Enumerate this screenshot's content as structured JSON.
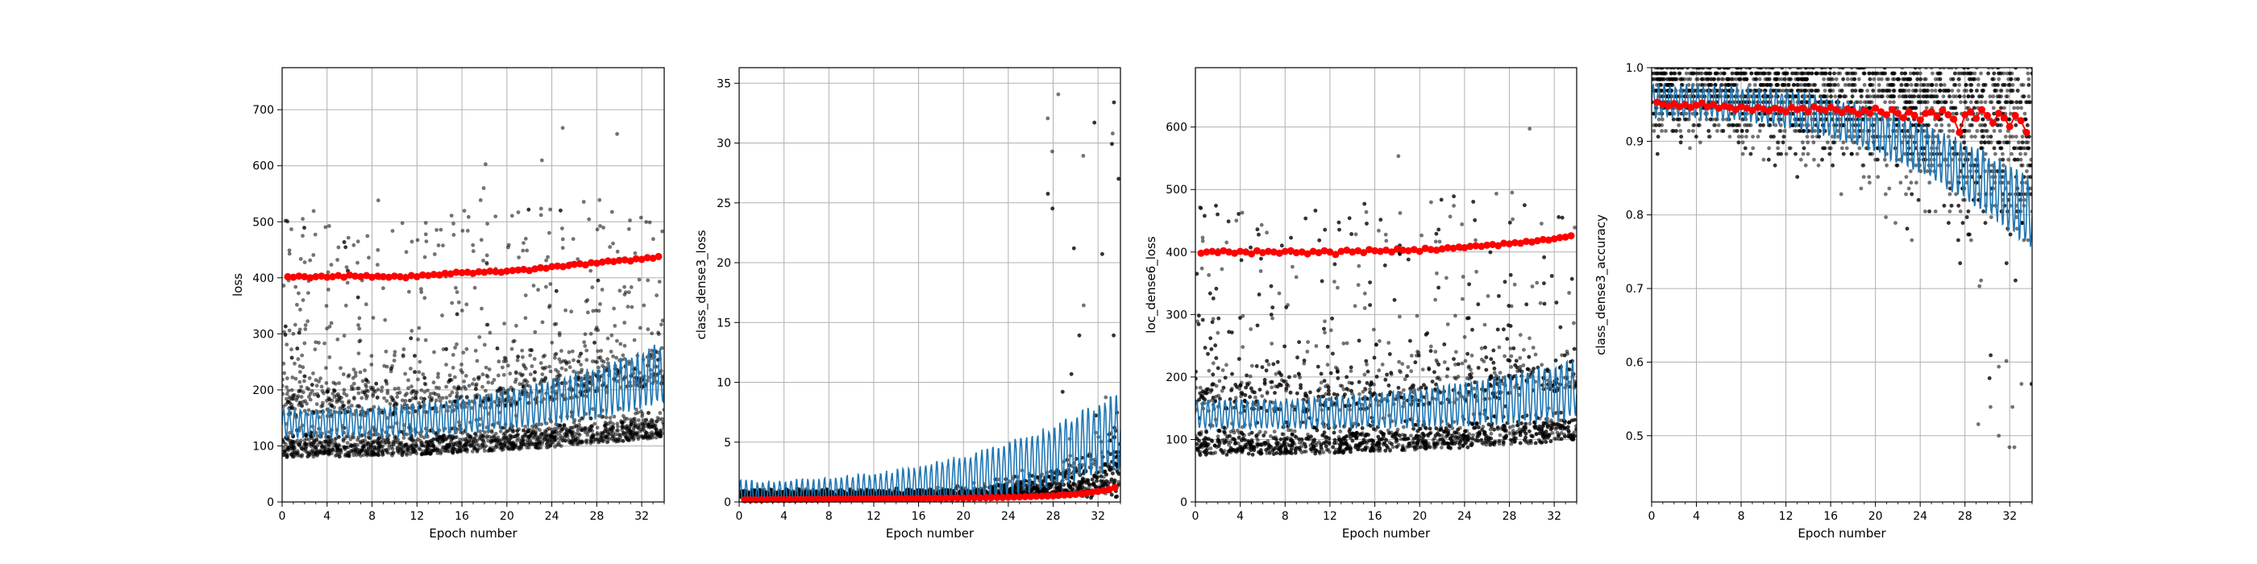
{
  "colors": {
    "scatter": "#000000",
    "batch_line": "#1f77b4",
    "epoch_points": "#ff0000",
    "grid": "#b0b0b0"
  },
  "chart_data": [
    {
      "type": "scatter",
      "xlabel": "Epoch number",
      "ylabel": "loss",
      "xlim": [
        0,
        34
      ],
      "ylim": [
        0,
        775
      ],
      "xticks": [
        0,
        4,
        8,
        12,
        16,
        20,
        24,
        28,
        32
      ],
      "xtick_labels": [
        "0",
        "4",
        "8",
        "12",
        "16",
        "20",
        "24",
        "28",
        "32"
      ],
      "yticks": [
        0,
        100,
        200,
        300,
        400,
        500,
        600,
        700
      ],
      "ytick_labels": [
        "0",
        "100",
        "200",
        "300",
        "400",
        "500",
        "600",
        "700"
      ],
      "grid": true,
      "cloud": {
        "base_low": 60,
        "base_mid": 150,
        "base_high": 500,
        "growth_end": 60,
        "outlier_max": 740
      },
      "batch_line": {
        "start": 140,
        "end": 230,
        "oscillation": 35
      },
      "epoch_points": {
        "x": [
          0.5,
          1,
          1.5,
          2,
          2.5,
          3,
          3.5,
          4,
          4.5,
          5,
          5.5,
          6,
          6.5,
          7,
          7.5,
          8,
          8.5,
          9,
          9.5,
          10,
          10.5,
          11,
          11.5,
          12,
          12.5,
          13,
          13.5,
          14,
          14.5,
          15,
          15.5,
          16,
          16.5,
          17,
          17.5,
          18,
          18.5,
          19,
          19.5,
          20,
          20.5,
          21,
          21.5,
          22,
          22.5,
          23,
          23.5,
          24,
          24.5,
          25,
          25.5,
          26,
          26.5,
          27,
          27.5,
          28,
          28.5,
          29,
          29.5,
          30,
          30.5,
          31,
          31.5,
          32,
          32.5,
          33,
          33.5
        ],
        "y": [
          402,
          401,
          403,
          402,
          400,
          402,
          403,
          401,
          402,
          404,
          401,
          405,
          403,
          402,
          404,
          401,
          403,
          402,
          401,
          403,
          402,
          400,
          404,
          402,
          405,
          404,
          406,
          405,
          408,
          407,
          410,
          409,
          410,
          408,
          411,
          410,
          412,
          411,
          410,
          412,
          413,
          414,
          415,
          413,
          416,
          418,
          417,
          420,
          421,
          420,
          422,
          424,
          425,
          423,
          427,
          426,
          428,
          430,
          429,
          431,
          432,
          430,
          434,
          433,
          436,
          435,
          438
        ]
      }
    },
    {
      "type": "scatter",
      "xlabel": "Epoch number",
      "ylabel": "class_dense3_loss",
      "xlim": [
        0,
        34
      ],
      "ylim": [
        0,
        36.3
      ],
      "xticks": [
        0,
        4,
        8,
        12,
        16,
        20,
        24,
        28,
        32
      ],
      "xtick_labels": [
        "0",
        "4",
        "8",
        "12",
        "16",
        "20",
        "24",
        "28",
        "32"
      ],
      "yticks": [
        0,
        5,
        10,
        15,
        20,
        25,
        30,
        35
      ],
      "ytick_labels": [
        "0",
        "5",
        "10",
        "15",
        "20",
        "25",
        "30",
        "35"
      ],
      "grid": true,
      "cloud": {
        "base": 0.3,
        "spread_start": 0.8,
        "spread_end": 14,
        "outlier_max": 34.5
      },
      "batch_line": {
        "start": 0.3,
        "end": 6,
        "oscillation": 2
      },
      "epoch_points": {
        "x": [
          0.5,
          1,
          1.5,
          2,
          2.5,
          3,
          3.5,
          4,
          4.5,
          5,
          5.5,
          6,
          6.5,
          7,
          7.5,
          8,
          8.5,
          9,
          9.5,
          10,
          10.5,
          11,
          11.5,
          12,
          12.5,
          13,
          13.5,
          14,
          14.5,
          15,
          15.5,
          16,
          16.5,
          17,
          17.5,
          18,
          18.5,
          19,
          19.5,
          20,
          20.5,
          21,
          21.5,
          22,
          22.5,
          23,
          23.5,
          24,
          24.5,
          25,
          25.5,
          26,
          26.5,
          27,
          27.5,
          28,
          28.5,
          29,
          29.5,
          30,
          30.5,
          31,
          31.5,
          32,
          32.5,
          33,
          33.5
        ],
        "y": [
          0.18,
          0.18,
          0.19,
          0.19,
          0.2,
          0.2,
          0.2,
          0.21,
          0.21,
          0.21,
          0.22,
          0.22,
          0.22,
          0.23,
          0.23,
          0.23,
          0.24,
          0.24,
          0.24,
          0.25,
          0.25,
          0.25,
          0.26,
          0.26,
          0.26,
          0.27,
          0.27,
          0.28,
          0.28,
          0.28,
          0.29,
          0.29,
          0.3,
          0.3,
          0.31,
          0.31,
          0.32,
          0.32,
          0.33,
          0.33,
          0.34,
          0.35,
          0.35,
          0.36,
          0.37,
          0.38,
          0.38,
          0.4,
          0.41,
          0.42,
          0.44,
          0.45,
          0.47,
          0.49,
          0.5,
          0.52,
          0.55,
          0.58,
          0.6,
          0.63,
          0.7,
          0.75,
          0.82,
          0.88,
          0.95,
          1.05,
          1.2
        ]
      }
    },
    {
      "type": "scatter",
      "xlabel": "Epoch number",
      "ylabel": "loc_dense6_loss",
      "xlim": [
        0,
        34
      ],
      "ylim": [
        0,
        695
      ],
      "xticks": [
        0,
        4,
        8,
        12,
        16,
        20,
        24,
        28,
        32
      ],
      "xtick_labels": [
        "0",
        "4",
        "8",
        "12",
        "16",
        "20",
        "24",
        "28",
        "32"
      ],
      "yticks": [
        0,
        100,
        200,
        300,
        400,
        500,
        600
      ],
      "ytick_labels": [
        "0",
        "100",
        "200",
        "300",
        "400",
        "500",
        "600"
      ],
      "grid": true,
      "cloud": {
        "base_low": 55,
        "base_mid": 140,
        "base_high": 470,
        "growth_end": 40,
        "outlier_max": 665
      },
      "batch_line": {
        "start": 140,
        "end": 180,
        "oscillation": 30
      },
      "epoch_points": {
        "x": [
          0.5,
          1,
          1.5,
          2,
          2.5,
          3,
          3.5,
          4,
          4.5,
          5,
          5.5,
          6,
          6.5,
          7,
          7.5,
          8,
          8.5,
          9,
          9.5,
          10,
          10.5,
          11,
          11.5,
          12,
          12.5,
          13,
          13.5,
          14,
          14.5,
          15,
          15.5,
          16,
          16.5,
          17,
          17.5,
          18,
          18.5,
          19,
          19.5,
          20,
          20.5,
          21,
          21.5,
          22,
          22.5,
          23,
          23.5,
          24,
          24.5,
          25,
          25.5,
          26,
          26.5,
          27,
          27.5,
          28,
          28.5,
          29,
          29.5,
          30,
          30.5,
          31,
          31.5,
          32,
          32.5,
          33,
          33.5
        ],
        "y": [
          398,
          400,
          401,
          399,
          402,
          400,
          398,
          401,
          400,
          397,
          402,
          399,
          401,
          400,
          398,
          401,
          402,
          399,
          400,
          397,
          401,
          399,
          402,
          400,
          396,
          401,
          403,
          400,
          402,
          399,
          404,
          402,
          401,
          403,
          400,
          405,
          403,
          402,
          404,
          401,
          406,
          404,
          403,
          405,
          407,
          406,
          408,
          407,
          409,
          410,
          409,
          411,
          412,
          410,
          414,
          413,
          415,
          414,
          417,
          416,
          418,
          420,
          419,
          421,
          423,
          424,
          426
        ]
      }
    },
    {
      "type": "scatter",
      "xlabel": "Epoch number",
      "ylabel": "class_dense3_accuracy",
      "xlim": [
        0,
        34
      ],
      "ylim": [
        0.41,
        1.0
      ],
      "xticks": [
        0,
        4,
        8,
        12,
        16,
        20,
        24,
        28,
        32
      ],
      "xtick_labels": [
        "0",
        "4",
        "8",
        "12",
        "16",
        "20",
        "24",
        "28",
        "32"
      ],
      "yticks": [
        0.5,
        0.6,
        0.7,
        0.8,
        0.9,
        1.0
      ],
      "ytick_labels": [
        "0.5",
        "0.6",
        "0.7",
        "0.8",
        "0.9",
        "1.0"
      ],
      "grid": true,
      "cloud": {
        "quantum": 0.0078125,
        "top": 1.0,
        "floor_start": 0.87,
        "floor_end": 0.6,
        "outlier_min": 0.44
      },
      "batch_line": {
        "start": 0.955,
        "end": 0.8,
        "oscillation": 0.03
      },
      "epoch_points": {
        "x": [
          0.5,
          1,
          1.5,
          2,
          2.5,
          3,
          3.5,
          4,
          4.5,
          5,
          5.5,
          6,
          6.5,
          7,
          7.5,
          8,
          8.5,
          9,
          9.5,
          10,
          10.5,
          11,
          11.5,
          12,
          12.5,
          13,
          13.5,
          14,
          14.5,
          15,
          15.5,
          16,
          16.5,
          17,
          17.5,
          18,
          18.5,
          19,
          19.5,
          20,
          20.5,
          21,
          21.5,
          22,
          22.5,
          23,
          23.5,
          24,
          24.5,
          25,
          25.5,
          26,
          26.5,
          27,
          27.5,
          28,
          28.5,
          29,
          29.5,
          30,
          30.5,
          31,
          31.5,
          32,
          32.5,
          33,
          33.5
        ],
        "y": [
          0.953,
          0.95,
          0.948,
          0.951,
          0.947,
          0.95,
          0.946,
          0.949,
          0.952,
          0.947,
          0.95,
          0.945,
          0.948,
          0.946,
          0.943,
          0.947,
          0.945,
          0.942,
          0.946,
          0.944,
          0.941,
          0.945,
          0.943,
          0.94,
          0.946,
          0.943,
          0.945,
          0.94,
          0.947,
          0.944,
          0.942,
          0.946,
          0.943,
          0.939,
          0.944,
          0.941,
          0.937,
          0.942,
          0.938,
          0.945,
          0.94,
          0.936,
          0.943,
          0.938,
          0.932,
          0.94,
          0.935,
          0.929,
          0.938,
          0.94,
          0.934,
          0.942,
          0.936,
          0.93,
          0.912,
          0.936,
          0.94,
          0.931,
          0.943,
          0.935,
          0.925,
          0.938,
          0.932,
          0.92,
          0.935,
          0.928,
          0.912
        ]
      }
    }
  ]
}
